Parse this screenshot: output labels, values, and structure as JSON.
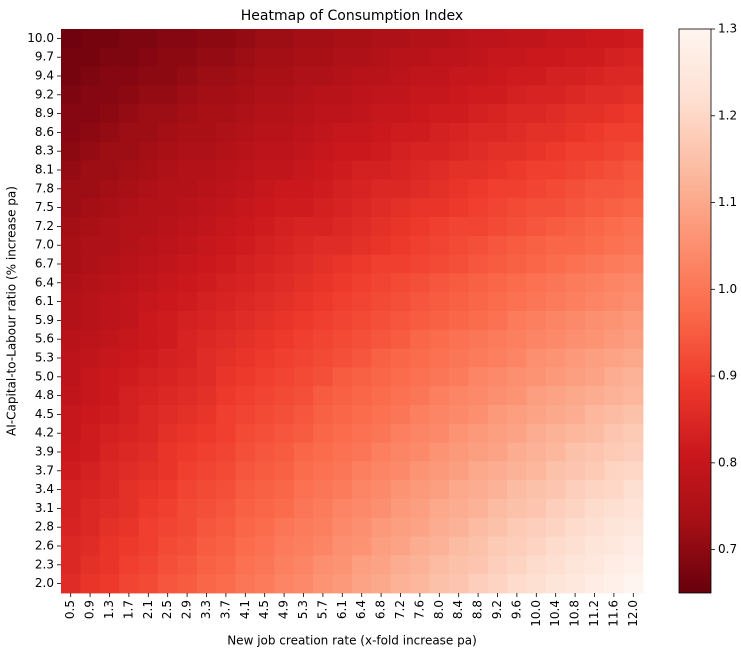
{
  "chart_data": {
    "type": "heatmap",
    "title": "Heatmap of Consumption Index",
    "x_label": "New job creation rate (x-fold increase pa)",
    "y_label": "AI-Capital-to-Labour ratio (% increase pa)",
    "categories": [
      "0.5",
      "0.9",
      "1.3",
      "1.7",
      "2.1",
      "2.5",
      "2.9",
      "3.3",
      "3.7",
      "4.1",
      "4.5",
      "4.9",
      "5.3",
      "5.7",
      "6.1",
      "6.4",
      "6.8",
      "7.2",
      "7.6",
      "8.0",
      "8.4",
      "8.8",
      "9.2",
      "9.6",
      "10.0",
      "10.4",
      "10.8",
      "11.2",
      "11.6",
      "12.0"
    ],
    "rows": [
      "10.0",
      "9.7",
      "9.4",
      "9.2",
      "8.9",
      "8.6",
      "8.3",
      "8.1",
      "7.8",
      "7.5",
      "7.2",
      "7.0",
      "6.7",
      "6.4",
      "6.1",
      "5.9",
      "5.6",
      "5.3",
      "5.0",
      "4.8",
      "4.5",
      "4.2",
      "3.9",
      "3.7",
      "3.4",
      "3.1",
      "2.8",
      "2.6",
      "2.3",
      "2.0"
    ],
    "values": [
      [
        0.66,
        0.67,
        0.67,
        0.68,
        0.68,
        0.69,
        0.69,
        0.7,
        0.7,
        0.71,
        0.72,
        0.72,
        0.73,
        0.73,
        0.74,
        0.74,
        0.75,
        0.75,
        0.76,
        0.76,
        0.77,
        0.78,
        0.78,
        0.79,
        0.79,
        0.8,
        0.8,
        0.81,
        0.81,
        0.82
      ],
      [
        0.67,
        0.67,
        0.68,
        0.68,
        0.69,
        0.7,
        0.7,
        0.71,
        0.71,
        0.72,
        0.73,
        0.73,
        0.74,
        0.74,
        0.75,
        0.75,
        0.76,
        0.77,
        0.77,
        0.78,
        0.78,
        0.79,
        0.8,
        0.8,
        0.81,
        0.81,
        0.82,
        0.82,
        0.83,
        0.84
      ],
      [
        0.67,
        0.68,
        0.69,
        0.69,
        0.7,
        0.7,
        0.71,
        0.72,
        0.72,
        0.73,
        0.74,
        0.74,
        0.75,
        0.75,
        0.76,
        0.77,
        0.77,
        0.78,
        0.79,
        0.79,
        0.8,
        0.8,
        0.81,
        0.82,
        0.82,
        0.83,
        0.83,
        0.84,
        0.85,
        0.85
      ],
      [
        0.68,
        0.69,
        0.69,
        0.7,
        0.71,
        0.71,
        0.72,
        0.73,
        0.73,
        0.74,
        0.75,
        0.75,
        0.76,
        0.77,
        0.77,
        0.78,
        0.79,
        0.79,
        0.8,
        0.8,
        0.81,
        0.82,
        0.82,
        0.83,
        0.84,
        0.84,
        0.85,
        0.86,
        0.86,
        0.87
      ],
      [
        0.69,
        0.69,
        0.7,
        0.71,
        0.72,
        0.72,
        0.73,
        0.74,
        0.74,
        0.75,
        0.76,
        0.76,
        0.77,
        0.78,
        0.78,
        0.79,
        0.8,
        0.8,
        0.81,
        0.82,
        0.82,
        0.83,
        0.84,
        0.85,
        0.85,
        0.86,
        0.87,
        0.87,
        0.88,
        0.89
      ],
      [
        0.69,
        0.7,
        0.71,
        0.72,
        0.72,
        0.73,
        0.74,
        0.74,
        0.75,
        0.76,
        0.77,
        0.77,
        0.78,
        0.79,
        0.8,
        0.8,
        0.81,
        0.82,
        0.82,
        0.83,
        0.84,
        0.85,
        0.85,
        0.86,
        0.87,
        0.87,
        0.88,
        0.89,
        0.9,
        0.9
      ],
      [
        0.7,
        0.71,
        0.72,
        0.72,
        0.73,
        0.74,
        0.75,
        0.75,
        0.76,
        0.77,
        0.78,
        0.78,
        0.79,
        0.8,
        0.81,
        0.81,
        0.82,
        0.83,
        0.84,
        0.84,
        0.85,
        0.86,
        0.87,
        0.87,
        0.88,
        0.89,
        0.9,
        0.9,
        0.91,
        0.92
      ],
      [
        0.71,
        0.72,
        0.72,
        0.73,
        0.74,
        0.75,
        0.76,
        0.76,
        0.77,
        0.78,
        0.79,
        0.79,
        0.8,
        0.81,
        0.82,
        0.83,
        0.83,
        0.84,
        0.85,
        0.86,
        0.87,
        0.87,
        0.88,
        0.89,
        0.9,
        0.9,
        0.91,
        0.92,
        0.93,
        0.94
      ],
      [
        0.72,
        0.72,
        0.73,
        0.74,
        0.75,
        0.76,
        0.76,
        0.77,
        0.78,
        0.79,
        0.8,
        0.81,
        0.81,
        0.82,
        0.83,
        0.84,
        0.85,
        0.85,
        0.86,
        0.87,
        0.88,
        0.89,
        0.9,
        0.9,
        0.91,
        0.92,
        0.93,
        0.94,
        0.94,
        0.95
      ],
      [
        0.72,
        0.73,
        0.74,
        0.75,
        0.76,
        0.76,
        0.77,
        0.78,
        0.79,
        0.8,
        0.81,
        0.82,
        0.82,
        0.83,
        0.84,
        0.85,
        0.86,
        0.87,
        0.88,
        0.88,
        0.89,
        0.9,
        0.91,
        0.92,
        0.93,
        0.93,
        0.94,
        0.95,
        0.96,
        0.97
      ],
      [
        0.73,
        0.74,
        0.75,
        0.76,
        0.76,
        0.77,
        0.78,
        0.79,
        0.8,
        0.81,
        0.82,
        0.83,
        0.84,
        0.84,
        0.85,
        0.86,
        0.87,
        0.88,
        0.89,
        0.9,
        0.91,
        0.91,
        0.92,
        0.93,
        0.94,
        0.95,
        0.96,
        0.97,
        0.98,
        0.99
      ],
      [
        0.74,
        0.75,
        0.75,
        0.76,
        0.77,
        0.78,
        0.79,
        0.8,
        0.81,
        0.82,
        0.83,
        0.84,
        0.85,
        0.86,
        0.86,
        0.87,
        0.88,
        0.89,
        0.9,
        0.91,
        0.92,
        0.93,
        0.94,
        0.95,
        0.96,
        0.97,
        0.97,
        0.98,
        0.99,
        1.0
      ],
      [
        0.74,
        0.75,
        0.76,
        0.77,
        0.78,
        0.79,
        0.8,
        0.81,
        0.82,
        0.83,
        0.84,
        0.85,
        0.86,
        0.87,
        0.88,
        0.89,
        0.9,
        0.9,
        0.91,
        0.92,
        0.93,
        0.94,
        0.95,
        0.96,
        0.97,
        0.98,
        0.99,
        1.0,
        1.01,
        1.02
      ],
      [
        0.75,
        0.76,
        0.77,
        0.78,
        0.79,
        0.8,
        0.81,
        0.82,
        0.83,
        0.84,
        0.85,
        0.86,
        0.87,
        0.88,
        0.89,
        0.9,
        0.91,
        0.92,
        0.93,
        0.94,
        0.95,
        0.96,
        0.97,
        0.98,
        0.99,
        1.0,
        1.01,
        1.02,
        1.03,
        1.04
      ],
      [
        0.76,
        0.77,
        0.78,
        0.79,
        0.8,
        0.81,
        0.82,
        0.83,
        0.84,
        0.85,
        0.86,
        0.87,
        0.88,
        0.89,
        0.9,
        0.91,
        0.92,
        0.93,
        0.94,
        0.95,
        0.96,
        0.97,
        0.98,
        0.99,
        1.0,
        1.01,
        1.02,
        1.03,
        1.04,
        1.05
      ],
      [
        0.76,
        0.77,
        0.78,
        0.79,
        0.81,
        0.82,
        0.83,
        0.84,
        0.85,
        0.86,
        0.87,
        0.88,
        0.89,
        0.9,
        0.91,
        0.92,
        0.93,
        0.94,
        0.95,
        0.96,
        0.97,
        0.98,
        0.99,
        1.01,
        1.02,
        1.03,
        1.04,
        1.05,
        1.06,
        1.07
      ],
      [
        0.77,
        0.78,
        0.79,
        0.8,
        0.81,
        0.82,
        0.84,
        0.85,
        0.86,
        0.87,
        0.88,
        0.89,
        0.9,
        0.91,
        0.92,
        0.93,
        0.94,
        0.95,
        0.97,
        0.98,
        0.99,
        1.0,
        1.01,
        1.02,
        1.03,
        1.04,
        1.05,
        1.06,
        1.07,
        1.08
      ],
      [
        0.78,
        0.79,
        0.8,
        0.81,
        0.82,
        0.83,
        0.84,
        0.86,
        0.87,
        0.88,
        0.89,
        0.9,
        0.91,
        0.92,
        0.93,
        0.94,
        0.96,
        0.97,
        0.98,
        0.99,
        1.0,
        1.01,
        1.02,
        1.03,
        1.05,
        1.06,
        1.07,
        1.08,
        1.09,
        1.1
      ],
      [
        0.78,
        0.8,
        0.81,
        0.82,
        0.83,
        0.84,
        0.85,
        0.86,
        0.88,
        0.89,
        0.9,
        0.91,
        0.92,
        0.93,
        0.95,
        0.96,
        0.97,
        0.98,
        0.99,
        1.0,
        1.01,
        1.03,
        1.04,
        1.05,
        1.06,
        1.07,
        1.08,
        1.09,
        1.11,
        1.12
      ],
      [
        0.79,
        0.8,
        0.81,
        0.83,
        0.84,
        0.85,
        0.86,
        0.87,
        0.89,
        0.9,
        0.91,
        0.92,
        0.93,
        0.95,
        0.96,
        0.97,
        0.98,
        0.99,
        1.0,
        1.02,
        1.03,
        1.04,
        1.05,
        1.06,
        1.08,
        1.09,
        1.1,
        1.11,
        1.12,
        1.13
      ],
      [
        0.8,
        0.81,
        0.82,
        0.83,
        0.85,
        0.86,
        0.87,
        0.88,
        0.9,
        0.91,
        0.92,
        0.93,
        0.94,
        0.96,
        0.97,
        0.98,
        0.99,
        1.0,
        1.02,
        1.03,
        1.04,
        1.05,
        1.07,
        1.08,
        1.09,
        1.1,
        1.11,
        1.13,
        1.14,
        1.15
      ],
      [
        0.8,
        0.82,
        0.83,
        0.84,
        0.85,
        0.87,
        0.88,
        0.89,
        0.9,
        0.92,
        0.93,
        0.94,
        0.95,
        0.97,
        0.98,
        0.99,
        1.0,
        1.02,
        1.03,
        1.04,
        1.06,
        1.07,
        1.08,
        1.09,
        1.11,
        1.12,
        1.13,
        1.14,
        1.16,
        1.17
      ],
      [
        0.81,
        0.82,
        0.84,
        0.85,
        0.86,
        0.88,
        0.89,
        0.9,
        0.91,
        0.93,
        0.94,
        0.95,
        0.97,
        0.98,
        0.99,
        1.0,
        1.02,
        1.03,
        1.04,
        1.06,
        1.07,
        1.08,
        1.09,
        1.11,
        1.12,
        1.13,
        1.15,
        1.16,
        1.17,
        1.18
      ],
      [
        0.82,
        0.83,
        0.85,
        0.86,
        0.87,
        0.88,
        0.9,
        0.91,
        0.92,
        0.94,
        0.95,
        0.96,
        0.98,
        0.99,
        1.0,
        1.02,
        1.03,
        1.04,
        1.06,
        1.07,
        1.08,
        1.1,
        1.11,
        1.12,
        1.13,
        1.15,
        1.16,
        1.17,
        1.19,
        1.2
      ],
      [
        0.83,
        0.84,
        0.85,
        0.87,
        0.88,
        0.89,
        0.91,
        0.92,
        0.93,
        0.95,
        0.96,
        0.97,
        0.99,
        1.0,
        1.01,
        1.03,
        1.04,
        1.06,
        1.07,
        1.08,
        1.1,
        1.11,
        1.12,
        1.14,
        1.15,
        1.16,
        1.18,
        1.19,
        1.2,
        1.22
      ],
      [
        0.83,
        0.85,
        0.86,
        0.87,
        0.89,
        0.9,
        0.92,
        0.93,
        0.94,
        0.96,
        0.97,
        0.98,
        1.0,
        1.01,
        1.03,
        1.04,
        1.05,
        1.07,
        1.08,
        1.1,
        1.11,
        1.12,
        1.14,
        1.15,
        1.16,
        1.18,
        1.19,
        1.21,
        1.22,
        1.23
      ],
      [
        0.84,
        0.85,
        0.87,
        0.88,
        0.9,
        0.91,
        0.92,
        0.94,
        0.95,
        0.97,
        0.98,
        1.0,
        1.01,
        1.02,
        1.04,
        1.05,
        1.07,
        1.08,
        1.09,
        1.11,
        1.12,
        1.14,
        1.15,
        1.17,
        1.18,
        1.19,
        1.21,
        1.22,
        1.24,
        1.25
      ],
      [
        0.85,
        0.86,
        0.88,
        0.89,
        0.9,
        0.92,
        0.93,
        0.95,
        0.96,
        0.98,
        0.99,
        1.01,
        1.02,
        1.03,
        1.05,
        1.06,
        1.08,
        1.09,
        1.11,
        1.12,
        1.14,
        1.15,
        1.17,
        1.18,
        1.19,
        1.21,
        1.22,
        1.24,
        1.25,
        1.27
      ],
      [
        0.85,
        0.87,
        0.88,
        0.9,
        0.91,
        0.93,
        0.94,
        0.96,
        0.97,
        0.99,
        1.0,
        1.02,
        1.03,
        1.05,
        1.06,
        1.08,
        1.09,
        1.11,
        1.12,
        1.14,
        1.15,
        1.16,
        1.18,
        1.19,
        1.21,
        1.22,
        1.24,
        1.25,
        1.27,
        1.28
      ],
      [
        0.86,
        0.88,
        0.89,
        0.91,
        0.92,
        0.94,
        0.95,
        0.97,
        0.98,
        1.0,
        1.01,
        1.03,
        1.04,
        1.06,
        1.07,
        1.09,
        1.1,
        1.12,
        1.13,
        1.15,
        1.16,
        1.18,
        1.19,
        1.21,
        1.22,
        1.24,
        1.25,
        1.27,
        1.28,
        1.3
      ]
    ],
    "zlim": [
      0.65,
      1.3
    ],
    "zticks": [
      0.7,
      0.8,
      0.9,
      {
        "value": 1,
        "label": "1.0"
      },
      1.1,
      1.2,
      1.3
    ],
    "colormap": [
      "#67000d",
      "#a50f15",
      "#cb181d",
      "#ef3b2c",
      "#fb6a4a",
      "#fc9272",
      "#fcbba1",
      "#fee0d2",
      "#fff5f0"
    ]
  }
}
